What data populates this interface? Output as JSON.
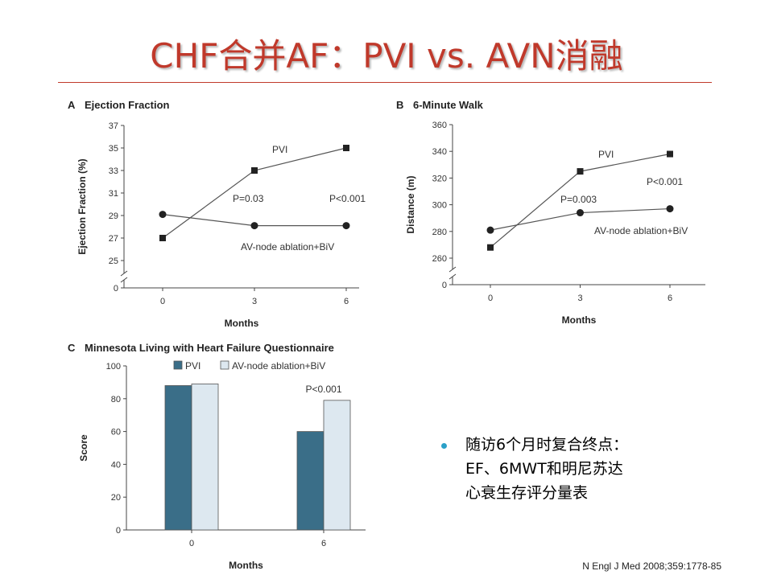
{
  "slide": {
    "title": "CHF合并AF：PVI vs. AVN消融",
    "bullet": {
      "lines": [
        "随访6个月时复合终点：",
        "EF、6MWT和明尼苏达",
        "心衰生存评分量表"
      ]
    },
    "citation": "N Engl J Med 2008;359:1778-85",
    "colors": {
      "title": "#c0392b",
      "bullet": "#2aa0c8",
      "bar_pvi": "#3a6e88",
      "bar_av": "#dde8f0"
    }
  },
  "chart_data": [
    {
      "panel_letter": "A",
      "type": "line",
      "title": "Ejection Fraction",
      "xlabel": "Months",
      "ylabel": "Ejection Fraction (%)",
      "categories": [
        "0",
        "3",
        "6"
      ],
      "yticks": [
        0,
        25,
        27,
        29,
        31,
        33,
        35,
        37
      ],
      "ylim": [
        25,
        37
      ],
      "axis_break": true,
      "series": [
        {
          "name": "PVI",
          "marker": "square",
          "values": [
            27,
            33,
            35
          ]
        },
        {
          "name": "AV-node ablation+BiV",
          "marker": "circle",
          "values": [
            29.1,
            28.1,
            28.1
          ]
        }
      ],
      "annotations": [
        "P=0.03",
        "P<0.001"
      ]
    },
    {
      "panel_letter": "B",
      "type": "line",
      "title": "6-Minute Walk",
      "xlabel": "Months",
      "ylabel": "Distance (m)",
      "categories": [
        "0",
        "3",
        "6"
      ],
      "yticks": [
        0,
        260,
        280,
        300,
        320,
        340,
        360
      ],
      "ylim": [
        260,
        360
      ],
      "axis_break": true,
      "series": [
        {
          "name": "PVI",
          "marker": "square",
          "values": [
            268,
            325,
            338
          ]
        },
        {
          "name": "AV-node ablation+BiV",
          "marker": "circle",
          "values": [
            281,
            294,
            297
          ]
        }
      ],
      "annotations": [
        "P=0.003",
        "P<0.001"
      ]
    },
    {
      "panel_letter": "C",
      "type": "bar",
      "title": "Minnesota Living with Heart Failure Questionnaire",
      "xlabel": "Months",
      "ylabel": "Score",
      "categories": [
        "0",
        "6"
      ],
      "yticks": [
        0,
        20,
        40,
        60,
        80,
        100
      ],
      "ylim": [
        0,
        100
      ],
      "legend": "top",
      "series": [
        {
          "name": "PVI",
          "values": [
            88,
            60
          ]
        },
        {
          "name": "AV-node ablation+BiV",
          "values": [
            89,
            79
          ]
        }
      ],
      "annotations": [
        "P<0.001"
      ]
    }
  ]
}
